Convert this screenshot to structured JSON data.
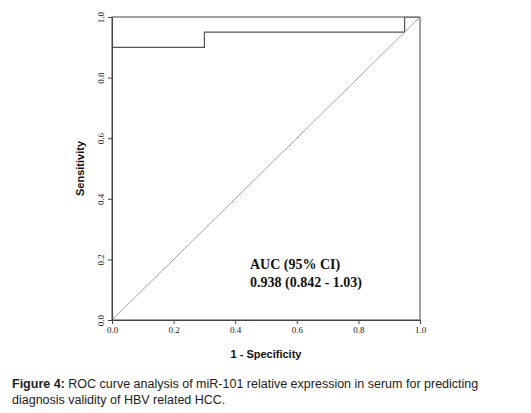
{
  "chart_data": {
    "type": "line",
    "title": "Figure 4: ROC curve analysis of miR-101 relative expression in serum for predicting diagnosis validity of HBV related HCC.",
    "x_label": "1 - Specificity",
    "y_label": "Sensitivity",
    "annotations": [
      "AUC (95% CI)",
      "0.938 (0.842 - 1.03)"
    ],
    "series": [
      {
        "color": "#555555",
        "line_style": "solid",
        "x": [
          0,
          0,
          0.3,
          0.3,
          0.95,
          0.95,
          1
        ],
        "values": [
          0,
          0.9,
          0.9,
          0.95,
          0.95,
          1,
          1
        ]
      },
      {
        "color": "#9a9a9a",
        "line_style": "solid",
        "x": [
          0,
          1
        ],
        "values": [
          0,
          1
        ]
      }
    ],
    "xlim": [
      0,
      1
    ],
    "ylim": [
      0,
      1
    ],
    "xticks": [
      {
        "value": 0,
        "label": "0.0"
      },
      0.2,
      0.4,
      0.6,
      0.8,
      {
        "value": 1,
        "label": "1.0"
      }
    ],
    "yticks": [
      {
        "value": 0,
        "label": "0.0"
      },
      0.2,
      0.4,
      0.6,
      0.8,
      {
        "value": 1,
        "label": "1.0"
      }
    ],
    "grid": false
  }
}
